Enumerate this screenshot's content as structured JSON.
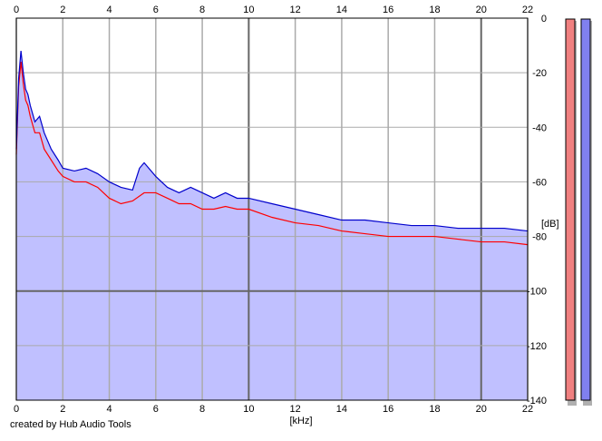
{
  "chart_data": {
    "type": "line",
    "title": "",
    "xlabel": "[kHz]",
    "ylabel": "[dB]",
    "x_ticks": [
      "0",
      "2",
      "4",
      "6",
      "8",
      "10",
      "12",
      "14",
      "16",
      "18",
      "20",
      "22"
    ],
    "y_ticks": [
      "0",
      "-20",
      "-40",
      "-60",
      "-80",
      "-100",
      "-120",
      "-140"
    ],
    "xlim": [
      0,
      22
    ],
    "ylim": [
      -140,
      0
    ],
    "grid": true,
    "series": [
      {
        "color": "#0000cc",
        "x": [
          0,
          0.1,
          0.2,
          0.3,
          0.4,
          0.5,
          0.6,
          0.8,
          1.0,
          1.2,
          1.5,
          1.8,
          2.0,
          2.5,
          3.0,
          3.5,
          4.0,
          4.5,
          5.0,
          5.3,
          5.5,
          6.0,
          6.5,
          7.0,
          7.5,
          8.0,
          8.5,
          9.0,
          9.5,
          10.0,
          11.0,
          12.0,
          13.0,
          14.0,
          15.0,
          16.0,
          17.0,
          18.0,
          19.0,
          20.0,
          21.0,
          22.0
        ],
        "values": [
          -48,
          -22,
          -12,
          -20,
          -26,
          -28,
          -32,
          -38,
          -36,
          -42,
          -48,
          -52,
          -55,
          -56,
          -55,
          -57,
          -60,
          -62,
          -63,
          -55,
          -53,
          -58,
          -62,
          -64,
          -62,
          -64,
          -66,
          -64,
          -66,
          -66,
          -68,
          -70,
          -72,
          -74,
          -74,
          -75,
          -76,
          -76,
          -77,
          -77,
          -77,
          -78
        ]
      },
      {
        "color": "#ff0000",
        "x": [
          0,
          0.1,
          0.2,
          0.3,
          0.4,
          0.5,
          0.6,
          0.8,
          1.0,
          1.2,
          1.5,
          1.8,
          2.0,
          2.5,
          3.0,
          3.5,
          4.0,
          4.5,
          5.0,
          5.5,
          6.0,
          6.5,
          7.0,
          7.5,
          8.0,
          8.5,
          9.0,
          9.5,
          10.0,
          11.0,
          12.0,
          13.0,
          14.0,
          15.0,
          16.0,
          17.0,
          18.0,
          19.0,
          20.0,
          21.0,
          22.0
        ],
        "values": [
          -50,
          -25,
          -16,
          -24,
          -30,
          -32,
          -36,
          -42,
          -42,
          -48,
          -52,
          -56,
          -58,
          -60,
          -60,
          -62,
          -66,
          -68,
          -67,
          -64,
          -64,
          -66,
          -68,
          -68,
          -70,
          -70,
          -69,
          -70,
          -70,
          -73,
          -75,
          -76,
          -78,
          -79,
          -80,
          -80,
          -80,
          -81,
          -82,
          -82,
          -83
        ]
      }
    ],
    "meters": [
      {
        "channel": "left",
        "color": "#f08080",
        "level": 1.0
      },
      {
        "channel": "right",
        "color": "#8080f0",
        "level": 1.0
      }
    ]
  },
  "footer": "created by Hub Audio Tools"
}
